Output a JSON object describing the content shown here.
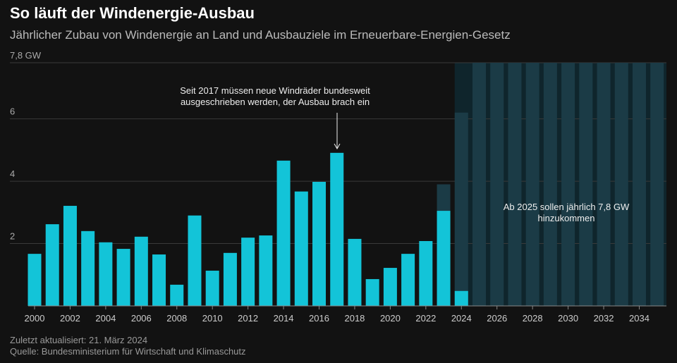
{
  "chart_data": {
    "type": "bar",
    "title": "So läuft der Windenergie-Ausbau",
    "subtitle": "Jährlicher Zubau von Windenergie an Land und Ausbauziele im Erneuerbare-Energien-Gesetz",
    "categories": [
      "2000",
      null,
      "2002",
      null,
      "2004",
      null,
      "2006",
      null,
      "2008",
      null,
      "2010",
      null,
      "2012",
      null,
      "2014",
      null,
      "2016",
      null,
      "2018",
      null,
      "2020",
      null,
      "2022",
      null,
      "2024",
      null,
      "2026",
      null,
      "2028",
      null,
      "2030",
      null,
      "2032",
      null,
      "2034",
      null
    ],
    "series": [
      {
        "color": "#1b3b46",
        "values": [
          null,
          null,
          null,
          null,
          null,
          null,
          null,
          null,
          null,
          null,
          null,
          null,
          null,
          null,
          null,
          null,
          null,
          null,
          null,
          null,
          null,
          null,
          null,
          3.9,
          6.2,
          7.8,
          7.8,
          7.8,
          7.8,
          7.8,
          7.8,
          7.8,
          7.8,
          7.8,
          7.8,
          7.8
        ]
      },
      {
        "color": "#13c4d8",
        "values": [
          1.67,
          2.62,
          3.21,
          2.4,
          2.04,
          1.83,
          2.22,
          1.65,
          0.68,
          2.9,
          1.13,
          1.7,
          2.19,
          2.26,
          4.66,
          3.67,
          3.98,
          4.91,
          2.15,
          0.86,
          1.22,
          1.67,
          2.08,
          3.05,
          0.48,
          null,
          null,
          null,
          null,
          null,
          null,
          null,
          null,
          null,
          null,
          null
        ]
      }
    ],
    "ylim": [
      0,
      7.8
    ],
    "yticks": [
      2,
      4,
      6,
      {
        "value": 7.8,
        "label": "7,8 GW"
      }
    ],
    "grid": true,
    "annotations": [
      {
        "text": [
          "Seit 2017 müssen neue Windräder bundesweit",
          "ausgeschrieben werden, der Ausbau brach ein"
        ]
      },
      {
        "text": [
          "Ab 2025 sollen jährlich 7,8 GW",
          "hinzukommen"
        ]
      }
    ],
    "footer": [
      "Zuletzt aktualisiert: 21. März 2024",
      "Quelle: Bundesministerium für Wirtschaft und Klimaschutz"
    ]
  }
}
